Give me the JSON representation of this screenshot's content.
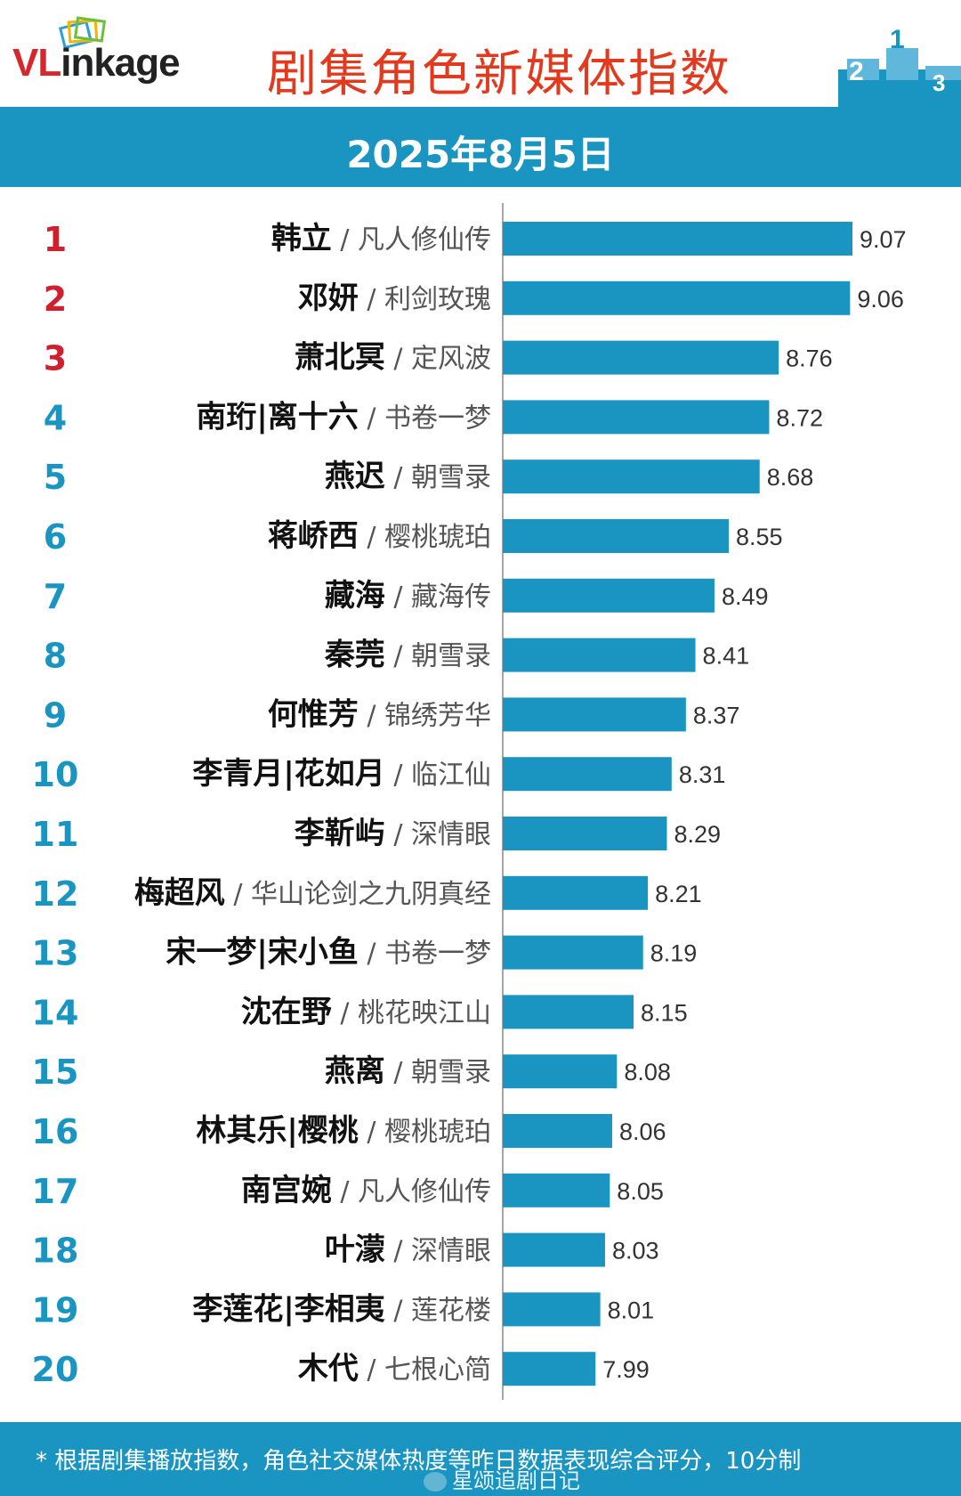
{
  "header": {
    "logo_text_red": "VL",
    "logo_text_dark": "inkage",
    "title": "剧集角色新媒体指数",
    "podium_numbers": [
      "2",
      "1",
      "3"
    ]
  },
  "date": "2025年8月5日",
  "footer": {
    "note": "* 根据剧集播放指数，角色社交媒体热度等昨日数据表现综合评分，10分制",
    "watermark": "星颂追剧日记"
  },
  "colors": {
    "bar": "#1a94c1",
    "band": "#1a94c1",
    "title": "#e23a1e",
    "rank_top3": "#d0202e",
    "rank_other": "#1a94c1"
  },
  "chart_data": {
    "type": "bar",
    "orientation": "horizontal",
    "x_axis_range": [
      7.6,
      9.2
    ],
    "grid": false,
    "rows": [
      {
        "rank": "1",
        "character": "韩立",
        "drama": "凡人修仙传",
        "value": 9.07,
        "label": "9.07"
      },
      {
        "rank": "2",
        "character": "邓妍",
        "drama": "利剑玫瑰",
        "value": 9.06,
        "label": "9.06"
      },
      {
        "rank": "3",
        "character": "萧北冥",
        "drama": "定风波",
        "value": 8.76,
        "label": "8.76"
      },
      {
        "rank": "4",
        "character": "南珩|离十六",
        "drama": "书卷一梦",
        "value": 8.72,
        "label": "8.72"
      },
      {
        "rank": "5",
        "character": "燕迟",
        "drama": "朝雪录",
        "value": 8.68,
        "label": "8.68"
      },
      {
        "rank": "6",
        "character": "蒋峤西",
        "drama": "樱桃琥珀",
        "value": 8.55,
        "label": "8.55"
      },
      {
        "rank": "7",
        "character": "藏海",
        "drama": "藏海传",
        "value": 8.49,
        "label": "8.49"
      },
      {
        "rank": "8",
        "character": "秦莞",
        "drama": "朝雪录",
        "value": 8.41,
        "label": "8.41"
      },
      {
        "rank": "9",
        "character": "何惟芳",
        "drama": "锦绣芳华",
        "value": 8.37,
        "label": "8.37"
      },
      {
        "rank": "10",
        "character": "李青月|花如月",
        "drama": "临江仙",
        "value": 8.31,
        "label": "8.31"
      },
      {
        "rank": "11",
        "character": "李靳屿",
        "drama": "深情眼",
        "value": 8.29,
        "label": "8.29"
      },
      {
        "rank": "12",
        "character": "梅超风",
        "drama": "华山论剑之九阴真经",
        "value": 8.21,
        "label": "8.21"
      },
      {
        "rank": "13",
        "character": "宋一梦|宋小鱼",
        "drama": "书卷一梦",
        "value": 8.19,
        "label": "8.19"
      },
      {
        "rank": "14",
        "character": "沈在野",
        "drama": "桃花映江山",
        "value": 8.15,
        "label": "8.15"
      },
      {
        "rank": "15",
        "character": "燕离",
        "drama": "朝雪录",
        "value": 8.08,
        "label": "8.08"
      },
      {
        "rank": "16",
        "character": "林其乐|樱桃",
        "drama": "樱桃琥珀",
        "value": 8.06,
        "label": "8.06"
      },
      {
        "rank": "17",
        "character": "南宫婉",
        "drama": "凡人修仙传",
        "value": 8.05,
        "label": "8.05"
      },
      {
        "rank": "18",
        "character": "叶濛",
        "drama": "深情眼",
        "value": 8.03,
        "label": "8.03"
      },
      {
        "rank": "19",
        "character": "李莲花|李相夷",
        "drama": "莲花楼",
        "value": 8.01,
        "label": "8.01"
      },
      {
        "rank": "20",
        "character": "木代",
        "drama": "七根心简",
        "value": 7.99,
        "label": "7.99"
      }
    ]
  }
}
